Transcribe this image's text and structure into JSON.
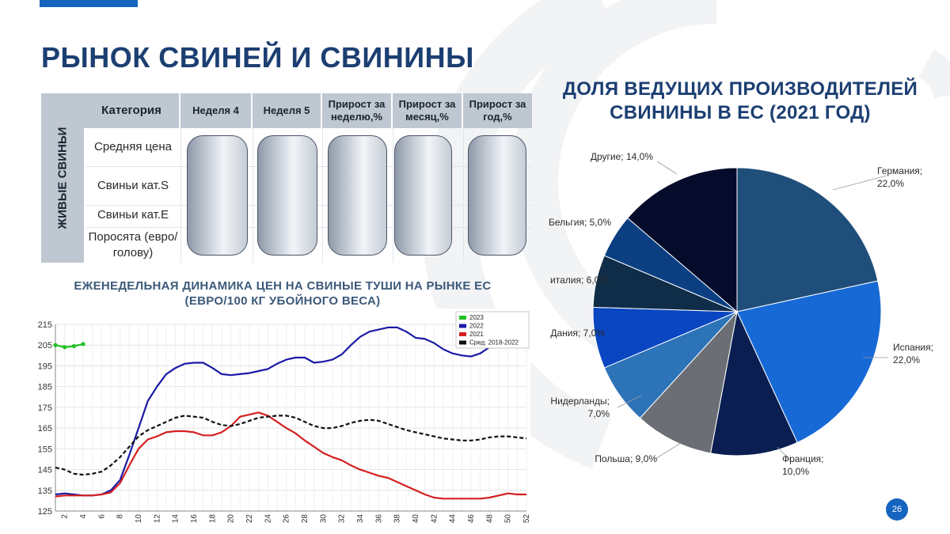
{
  "slide": {
    "title": "РЫНОК СВИНЕЙ И СВИНИНЫ",
    "page_number": "26",
    "accent_color": "#1565c0"
  },
  "table": {
    "side_label": "ЖИВЫЕ СВИНЬИ",
    "headers": [
      "Категория",
      "Неделя 4",
      "Неделя 5",
      "Прирост за неделю,%",
      "Прирост за месяц,%",
      "Прирост за год,%"
    ],
    "rows": [
      "Средняя цена",
      "Свиньи кат.S",
      "Свиньи кат.E",
      "Поросята (евро/голову)"
    ]
  },
  "line_chart_title": "ЕЖЕНЕДЕЛЬНАЯ ДИНАМИКА ЦЕН НА СВИНЫЕ ТУШИ НА РЫНКЕ ЕС (ЕВРО/100 КГ УБОЙНОГО ВЕСА)",
  "pie_chart_title": "ДОЛЯ ВЕДУЩИХ ПРОИЗВОДИТЕЛЕЙ СВИНИНЫ В ЕС (2021 ГОД)",
  "chart_data": [
    {
      "type": "line",
      "title": "ЕЖЕНЕДЕЛЬНАЯ ДИНАМИКА ЦЕН НА СВИНЫЕ ТУШИ НА РЫНКЕ ЕС (ЕВРО/100 КГ УБОЙНОГО ВЕСА)",
      "xlabel": "",
      "ylabel": "",
      "xlim": [
        1,
        52
      ],
      "ylim": [
        125,
        215
      ],
      "yticks": [
        125,
        135,
        145,
        155,
        165,
        175,
        185,
        195,
        205,
        215
      ],
      "xticks": [
        2,
        4,
        6,
        8,
        10,
        12,
        14,
        16,
        18,
        20,
        22,
        24,
        26,
        28,
        30,
        32,
        34,
        36,
        38,
        40,
        42,
        44,
        46,
        48,
        50,
        52
      ],
      "grid": true,
      "legend": "top-right",
      "series": [
        {
          "name": "2023",
          "color": "#22c022",
          "x": [
            1,
            2,
            3,
            4
          ],
          "values": [
            205,
            204,
            204.5,
            205.5
          ]
        },
        {
          "name": "2022",
          "color": "#1a1aa6",
          "x": [
            1,
            2,
            3,
            4,
            5,
            6,
            7,
            8,
            9,
            10,
            11,
            12,
            13,
            14,
            15,
            16,
            17,
            18,
            19,
            20,
            21,
            22,
            23,
            24,
            25,
            26,
            27,
            28,
            29,
            30,
            31,
            32,
            33,
            34,
            35,
            36,
            37,
            38,
            39,
            40,
            41,
            42,
            43,
            44,
            45,
            46,
            47,
            48,
            49,
            50,
            51,
            52
          ],
          "values": [
            133,
            133.5,
            133,
            132.5,
            132.5,
            133,
            135,
            140,
            152,
            165,
            178,
            185,
            191,
            194,
            196,
            196.5,
            196.5,
            194,
            191,
            190.5,
            191,
            191.5,
            192.5,
            193.5,
            196,
            198,
            199,
            199,
            196.5,
            197,
            198,
            200.5,
            205,
            209,
            211.5,
            212.5,
            213.5,
            213.5,
            211.5,
            208.5,
            208,
            206,
            203,
            201,
            200,
            199.5,
            201,
            204,
            205.5,
            205.5,
            205.5,
            204.5
          ]
        },
        {
          "name": "2021",
          "color": "#d42020",
          "x": [
            1,
            2,
            3,
            4,
            5,
            6,
            7,
            8,
            9,
            10,
            11,
            12,
            13,
            14,
            15,
            16,
            17,
            18,
            19,
            20,
            21,
            22,
            23,
            24,
            25,
            26,
            27,
            28,
            29,
            30,
            31,
            32,
            33,
            34,
            35,
            36,
            37,
            38,
            39,
            40,
            41,
            42,
            43,
            44,
            45,
            46,
            47,
            48,
            49,
            50,
            51,
            52
          ],
          "values": [
            132,
            132.5,
            132.5,
            132.5,
            132.5,
            133,
            134,
            138.5,
            147,
            155,
            159.5,
            161,
            163,
            163.5,
            163.5,
            163,
            161.5,
            161.5,
            163,
            166,
            170.5,
            171.5,
            172.5,
            171,
            168,
            165,
            162.5,
            159,
            156,
            153,
            151,
            149.5,
            147,
            145,
            143.5,
            142,
            141,
            139,
            137,
            135,
            133,
            131.5,
            131,
            131,
            131,
            131,
            131,
            131.5,
            132.5,
            133.5,
            133,
            133
          ]
        },
        {
          "name": "Сред. 2018-2022",
          "color": "#111111",
          "dashed": true,
          "x": [
            1,
            2,
            3,
            4,
            5,
            6,
            7,
            8,
            9,
            10,
            11,
            12,
            13,
            14,
            15,
            16,
            17,
            18,
            19,
            20,
            21,
            22,
            23,
            24,
            25,
            26,
            27,
            28,
            29,
            30,
            31,
            32,
            33,
            34,
            35,
            36,
            37,
            38,
            39,
            40,
            41,
            42,
            43,
            44,
            45,
            46,
            47,
            48,
            49,
            50,
            51,
            52
          ],
          "values": [
            146,
            145,
            143,
            142.5,
            143,
            144,
            147,
            151,
            156,
            161,
            164,
            166,
            168,
            170,
            171,
            170.5,
            170,
            168,
            166.5,
            166,
            167,
            168.5,
            170,
            170.5,
            171,
            171,
            170,
            168,
            166,
            165,
            165,
            166,
            167.5,
            168.5,
            169,
            168.5,
            167,
            165.5,
            164,
            163,
            162,
            161,
            160,
            159.5,
            159,
            159,
            159.5,
            160.5,
            161,
            161,
            160.5,
            160
          ]
        }
      ]
    },
    {
      "type": "pie",
      "title": "ДОЛЯ ВЕДУЩИХ ПРОИЗВОДИТЕЛЕЙ СВИНИНЫ В ЕС (2021 ГОД)",
      "slices": [
        {
          "label": "Германия",
          "value": 22.0,
          "display": "Германия;\n22,0%",
          "color": "#1f4e7a"
        },
        {
          "label": "Испания",
          "value": 22.0,
          "display": "Испания;\n22,0%",
          "color": "#1769d6"
        },
        {
          "label": "Франция",
          "value": 10.0,
          "display": "Франция;\n10,0%",
          "color": "#0a1e52"
        },
        {
          "label": "Польша",
          "value": 9.0,
          "display": "Польша; 9,0%",
          "color": "#6b6f75"
        },
        {
          "label": "Нидерланды",
          "value": 7.0,
          "display": "Нидерланды;\n7,0%",
          "color": "#2d73b8"
        },
        {
          "label": "Дания",
          "value": 7.0,
          "display": "Дания; 7,0%",
          "color": "#0a46c2"
        },
        {
          "label": "италия",
          "value": 6.0,
          "display": "италия; 6,0%",
          "color": "#0f2d48"
        },
        {
          "label": "Бельгия",
          "value": 5.0,
          "display": "Бельгия; 5,0%",
          "color": "#0b3f82"
        },
        {
          "label": "Другие",
          "value": 14.0,
          "display": "Другие; 14,0%",
          "color": "#050b2a"
        }
      ]
    }
  ]
}
